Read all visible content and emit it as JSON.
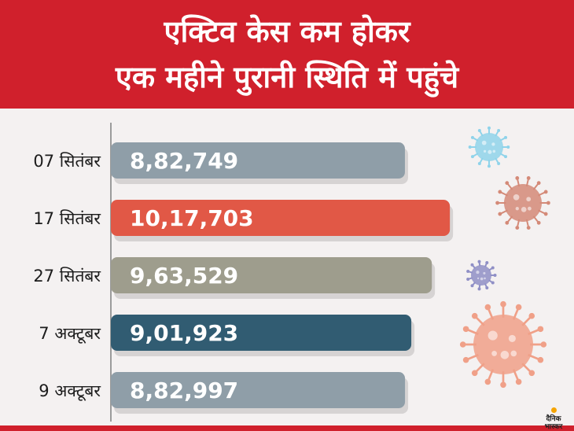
{
  "header": {
    "title_line_1": "एक्टिव केस कम होकर",
    "title_line_2": "एक महीने पुरानी स्थिति में पहुंचे"
  },
  "chart_data": {
    "type": "bar",
    "orientation": "horizontal",
    "categories": [
      "07 सितंबर",
      "17 सितंबर",
      "27 सितंबर",
      "7 अक्टूबर",
      "9 अक्टूबर"
    ],
    "values": [
      882749,
      1017703,
      963529,
      901923,
      882997
    ],
    "data_labels": [
      "8,82,749",
      "10,17,703",
      "9,63,529",
      "9,01,923",
      "8,82,997"
    ],
    "bar_colors": [
      "#8f9ea8",
      "#e15846",
      "#9e9d8d",
      "#315c72",
      "#8f9ea8"
    ],
    "title": "",
    "xlabel": "",
    "ylabel": "",
    "grid": false,
    "legend": "none"
  },
  "decoration": {
    "virus_colors": [
      "#8fd3ea",
      "#d48a78",
      "#8f8fc6",
      "#f0a088"
    ],
    "logo_text": "दैनिक भास्कर"
  }
}
